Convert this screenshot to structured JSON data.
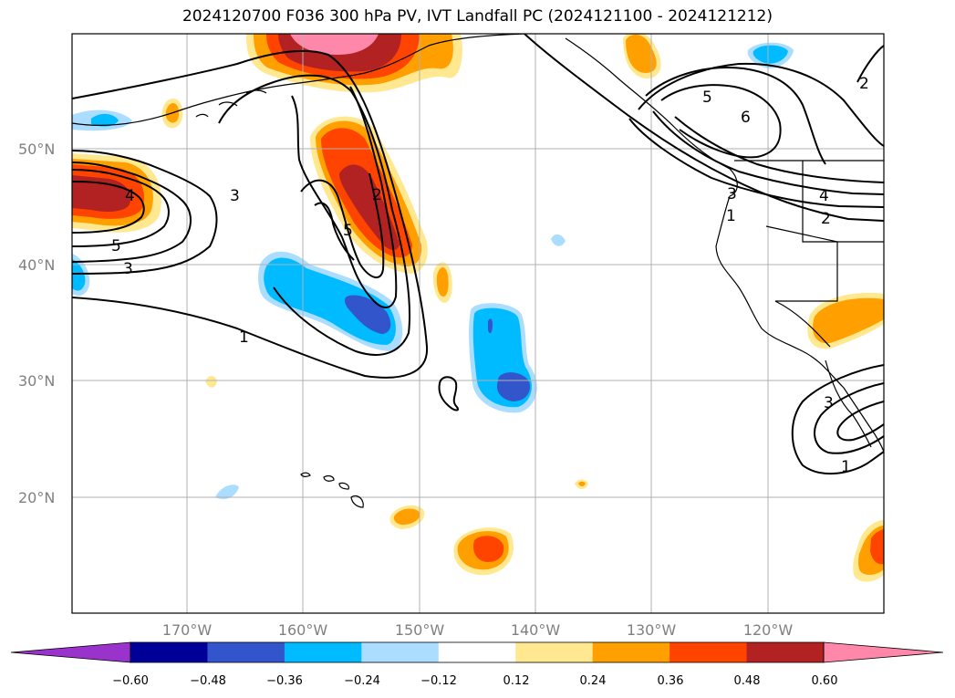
{
  "title": "2024120700 F036 300 hPa PV, IVT Landfall PC (2024121100 - 2024121212)",
  "axes": {
    "lat_labels": [
      "50°N",
      "40°N",
      "30°N",
      "20°N"
    ],
    "lon_labels": [
      "170°W",
      "160°W",
      "150°W",
      "140°W",
      "130°W",
      "120°W"
    ]
  },
  "contour_labels": [
    "4",
    "5",
    "3",
    "3",
    "2",
    "5",
    "1",
    "5",
    "6",
    "4",
    "3",
    "1",
    "2",
    "2",
    "3",
    "1"
  ],
  "colorbar": {
    "ticks": [
      "−0.60",
      "−0.48",
      "−0.36",
      "−0.24",
      "−0.12",
      "0.12",
      "0.24",
      "0.36",
      "0.48",
      "0.60"
    ],
    "colors": [
      "#9933cc",
      "#000099",
      "#3355cc",
      "#00bbff",
      "#aaddff",
      "#ffffff",
      "#ffe890",
      "#ffa000",
      "#ff4400",
      "#b22222",
      "#ff88aa"
    ]
  },
  "colors": {
    "land_outline": "#000000",
    "grid": "#b0b0b0",
    "contour": "#000000"
  }
}
